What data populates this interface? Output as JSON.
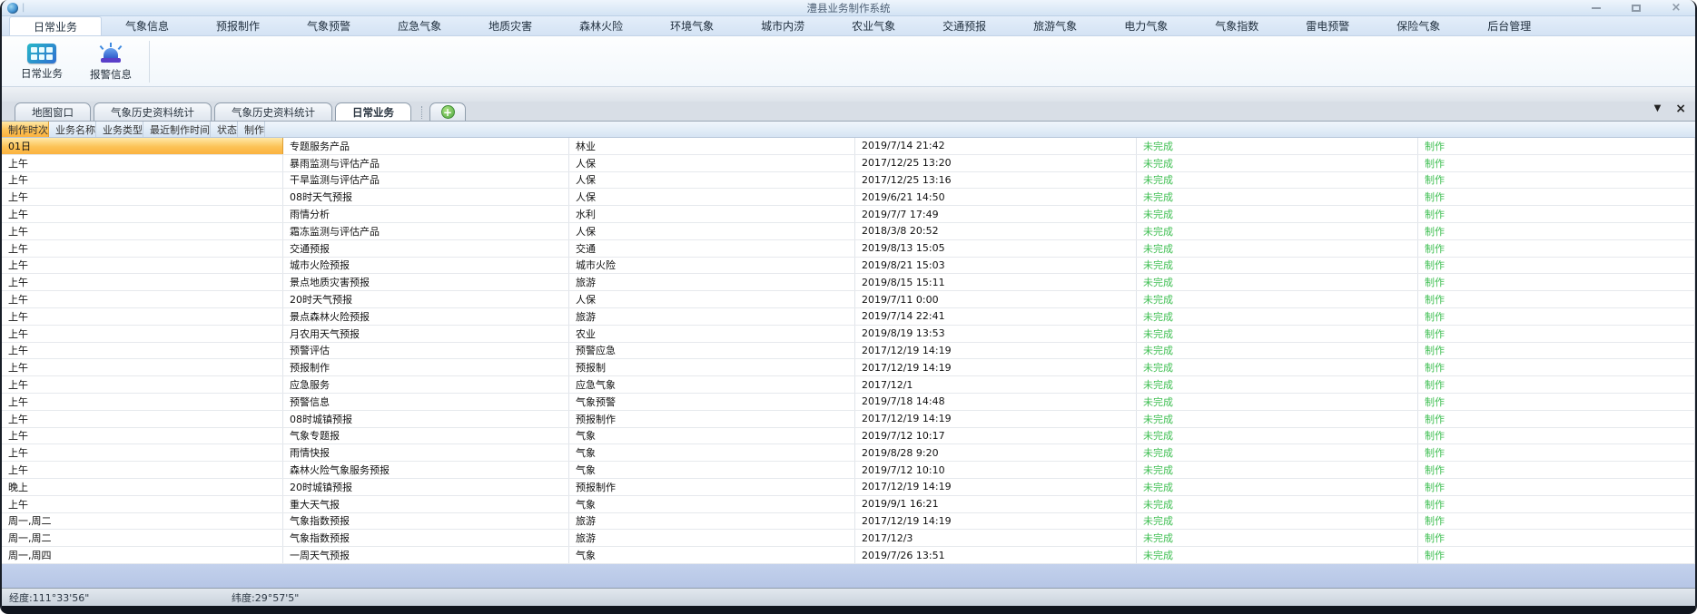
{
  "window": {
    "title": "澧县业务制作系统",
    "controls": {
      "close_glyph": "×"
    }
  },
  "ribbon": {
    "tabs": [
      {
        "label": "日常业务",
        "active": true
      },
      {
        "label": "气象信息"
      },
      {
        "label": "预报制作"
      },
      {
        "label": "气象预警"
      },
      {
        "label": "应急气象"
      },
      {
        "label": "地质灾害"
      },
      {
        "label": "森林火险"
      },
      {
        "label": "环境气象"
      },
      {
        "label": "城市内涝"
      },
      {
        "label": "农业气象"
      },
      {
        "label": "交通预报"
      },
      {
        "label": "旅游气象"
      },
      {
        "label": "电力气象"
      },
      {
        "label": "气象指数"
      },
      {
        "label": "雷电预警"
      },
      {
        "label": "保险气象"
      },
      {
        "label": "后台管理"
      }
    ],
    "buttons": [
      {
        "label": "日常业务",
        "icon": "grid-icon"
      },
      {
        "label": "报警信息",
        "icon": "siren-icon"
      }
    ]
  },
  "tabstrip": {
    "tabs": [
      {
        "label": "地图窗口"
      },
      {
        "label": "气象历史资料统计"
      },
      {
        "label": "气象历史资料统计"
      },
      {
        "label": "日常业务",
        "active": true
      }
    ],
    "add_glyph": "+",
    "dropdown_glyph": "▼",
    "close_glyph": "×"
  },
  "table": {
    "columns": [
      {
        "label": "制作时次",
        "highlight": true
      },
      {
        "label": "业务名称"
      },
      {
        "label": "业务类型"
      },
      {
        "label": "最近制作时间"
      },
      {
        "label": "状态"
      },
      {
        "label": "制作"
      }
    ],
    "rows": [
      {
        "time": "01日",
        "name": "专题服务产品",
        "type": "林业",
        "last": "2019/7/14 21:42",
        "status": "未完成",
        "action": "制作",
        "highlight": true
      },
      {
        "time": "上午",
        "name": "暴雨监测与评估产品",
        "type": "人保",
        "last": "2017/12/25 13:20",
        "status": "未完成",
        "action": "制作"
      },
      {
        "time": "上午",
        "name": "干旱监测与评估产品",
        "type": "人保",
        "last": "2017/12/25 13:16",
        "status": "未完成",
        "action": "制作"
      },
      {
        "time": "上午",
        "name": "08时天气预报",
        "type": "人保",
        "last": "2019/6/21 14:50",
        "status": "未完成",
        "action": "制作"
      },
      {
        "time": "上午",
        "name": "雨情分析",
        "type": "水利",
        "last": "2019/7/7 17:49",
        "status": "未完成",
        "action": "制作"
      },
      {
        "time": "上午",
        "name": "霜冻监测与评估产品",
        "type": "人保",
        "last": "2018/3/8 20:52",
        "status": "未完成",
        "action": "制作"
      },
      {
        "time": "上午",
        "name": "交通预报",
        "type": "交通",
        "last": "2019/8/13 15:05",
        "status": "未完成",
        "action": "制作"
      },
      {
        "time": "上午",
        "name": "城市火险预报",
        "type": "城市火险",
        "last": "2019/8/21 15:03",
        "status": "未完成",
        "action": "制作"
      },
      {
        "time": "上午",
        "name": "景点地质灾害预报",
        "type": "旅游",
        "last": "2019/8/15 15:11",
        "status": "未完成",
        "action": "制作"
      },
      {
        "time": "上午",
        "name": "20时天气预报",
        "type": "人保",
        "last": "2019/7/11 0:00",
        "status": "未完成",
        "action": "制作"
      },
      {
        "time": "上午",
        "name": "景点森林火险预报",
        "type": "旅游",
        "last": "2019/7/14 22:41",
        "status": "未完成",
        "action": "制作"
      },
      {
        "time": "上午",
        "name": "月农用天气预报",
        "type": "农业",
        "last": "2019/8/19 13:53",
        "status": "未完成",
        "action": "制作"
      },
      {
        "time": "上午",
        "name": "预警评估",
        "type": "预警应急",
        "last": "2017/12/19 14:19",
        "status": "未完成",
        "action": "制作"
      },
      {
        "time": "上午",
        "name": "预报制作",
        "type": "预报制",
        "last": "2017/12/19 14:19",
        "status": "未完成",
        "action": "制作"
      },
      {
        "time": "上午",
        "name": "应急服务",
        "type": "应急气象",
        "last": "2017/12/1",
        "status": "未完成",
        "action": "制作"
      },
      {
        "time": "上午",
        "name": "预警信息",
        "type": "气象预警",
        "last": "2019/7/18 14:48",
        "status": "未完成",
        "action": "制作"
      },
      {
        "time": "上午",
        "name": "08时城镇预报",
        "type": "预报制作",
        "last": "2017/12/19 14:19",
        "status": "未完成",
        "action": "制作"
      },
      {
        "time": "上午",
        "name": "气象专题报",
        "type": "气象",
        "last": "2019/7/12 10:17",
        "status": "未完成",
        "action": "制作"
      },
      {
        "time": "上午",
        "name": "雨情快报",
        "type": "气象",
        "last": "2019/8/28 9:20",
        "status": "未完成",
        "action": "制作"
      },
      {
        "time": "上午",
        "name": "森林火险气象服务预报",
        "type": "气象",
        "last": "2019/7/12 10:10",
        "status": "未完成",
        "action": "制作"
      },
      {
        "time": "晚上",
        "name": "20时城镇预报",
        "type": "预报制作",
        "last": "2017/12/19 14:19",
        "status": "未完成",
        "action": "制作"
      },
      {
        "time": "上午",
        "name": "重大天气报",
        "type": "气象",
        "last": "2019/9/1 16:21",
        "status": "未完成",
        "action": "制作"
      },
      {
        "time": "周一,周二",
        "name": "气象指数预报",
        "type": "旅游",
        "last": "2017/12/19 14:19",
        "status": "未完成",
        "action": "制作"
      },
      {
        "time": "周一,周二",
        "name": "气象指数预报",
        "type": "旅游",
        "last": "2017/12/3",
        "status": "未完成",
        "action": "制作"
      },
      {
        "time": "周一,周四",
        "name": "一周天气预报",
        "type": "气象",
        "last": "2019/7/26 13:51",
        "status": "未完成",
        "action": "制作"
      }
    ]
  },
  "statusbar": {
    "longitude": "经度:111°33'56\"",
    "latitude": "纬度:29°57'5\""
  },
  "colors": {
    "highlight_orange": "#fbb23e",
    "status_green": "#3fbf52",
    "selection_blue": "#b9c9e8",
    "titlebar_blue": "#d3e3f4"
  }
}
